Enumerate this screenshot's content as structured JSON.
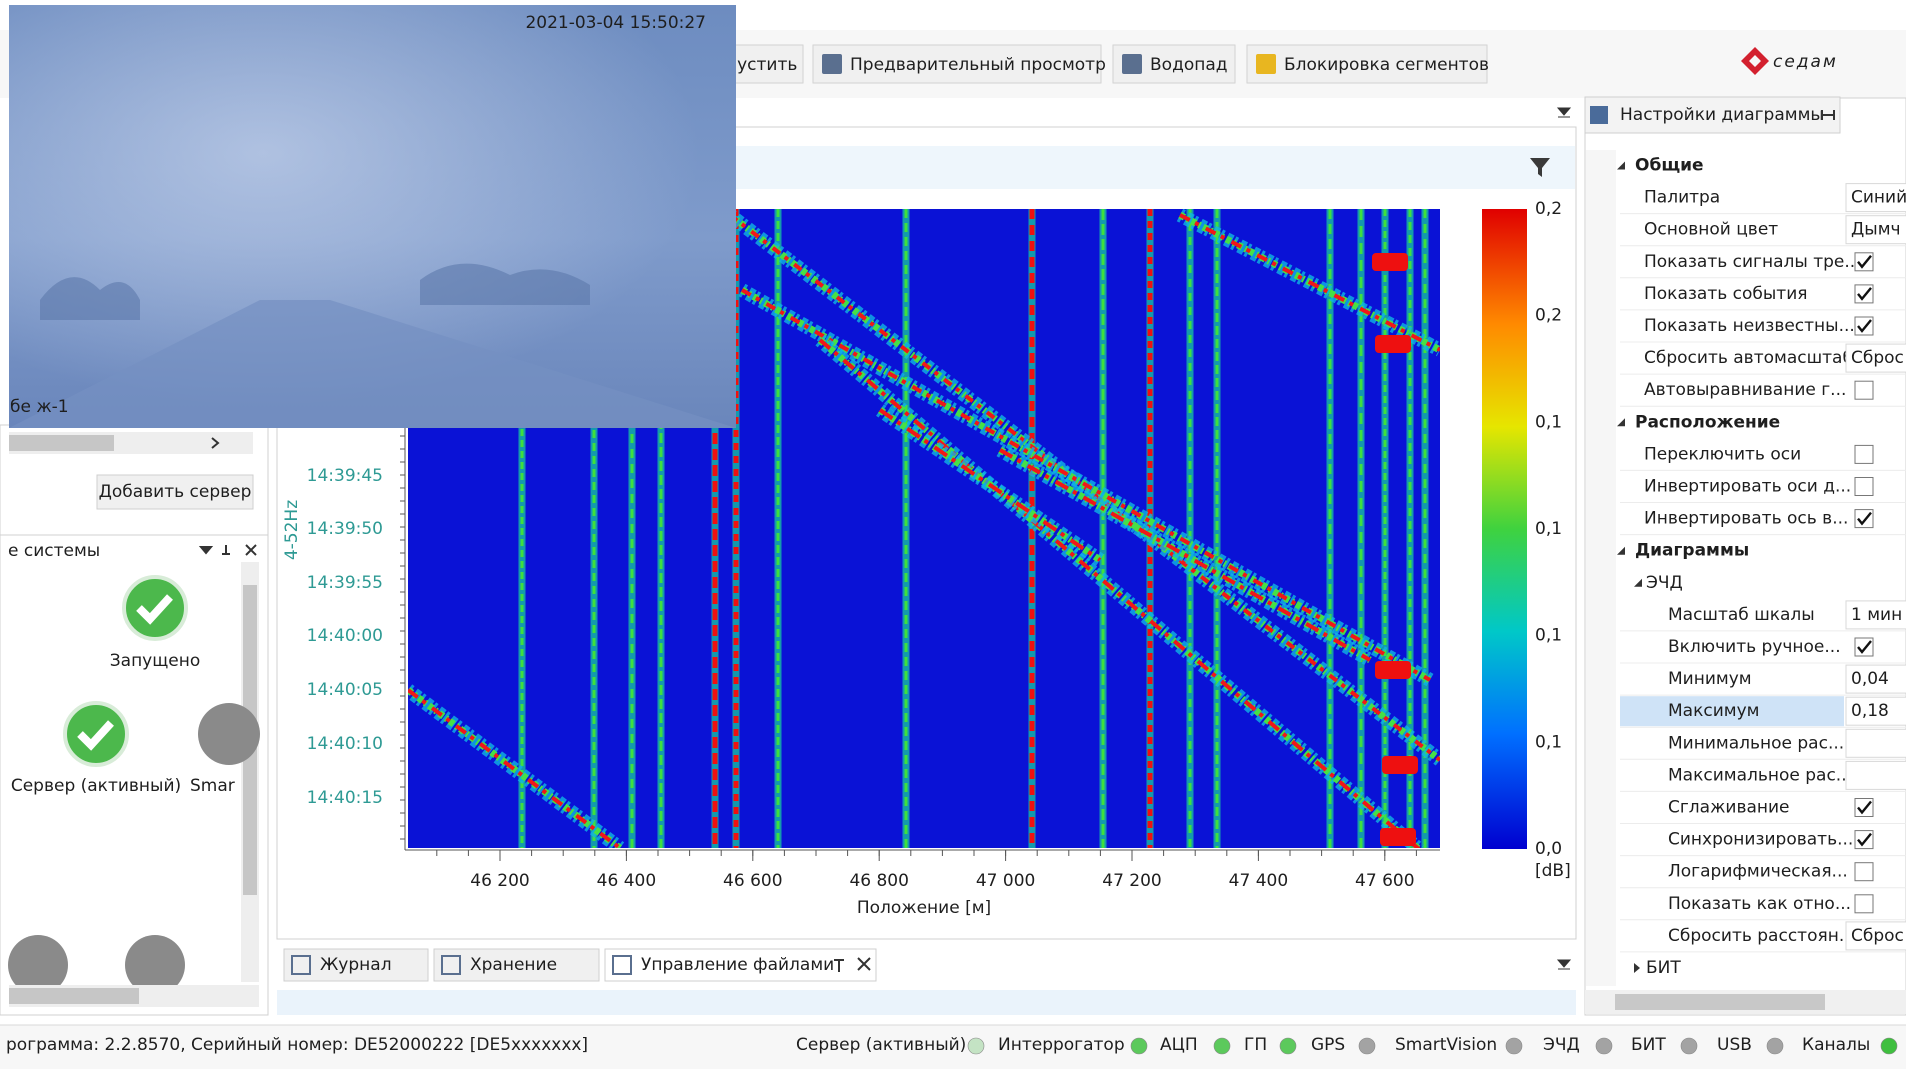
{
  "toolbar": {
    "buttons": [
      "пустить",
      "Предварительный просмотр",
      "Водопад",
      "Блокировка сегментов"
    ],
    "logo": "седам"
  },
  "camera": {
    "timestamp": "2021-03-04 15:50:27",
    "label": "бе ж-1"
  },
  "left_panel": {
    "add_server": "Добавить сервер",
    "title": "е системы",
    "items": [
      "Запущено",
      "Сервер (активный)",
      "Smar"
    ]
  },
  "waterfall": {
    "y_axis_label": "4-52Hz",
    "times": [
      "14:39:45",
      "14:39:50",
      "14:39:55",
      "14:40:00",
      "14:40:05",
      "14:40:10",
      "14:40:15"
    ],
    "positions": [
      "46 200",
      "46 400",
      "46 600",
      "46 800",
      "47 000",
      "47 200",
      "47 400",
      "47 600"
    ],
    "x_axis_title": "Положение [м]",
    "colorbar": [
      "0,2",
      "0,2",
      "0,1",
      "0,1",
      "0,1",
      "0,1",
      "0,0"
    ],
    "colorbar_unit": "[dB]"
  },
  "tabs": [
    "Журнал",
    "Хранение",
    "Управление файлами"
  ],
  "settings": {
    "title": "Настройки диаграммы",
    "groups": [
      {
        "title": "Общие",
        "rows": [
          {
            "label": "Палитра",
            "value": "Синий"
          },
          {
            "label": "Основной цвет",
            "value": "Дымч"
          },
          {
            "label": "Показать сигналы тре...",
            "checked": true
          },
          {
            "label": "Показать события",
            "checked": true
          },
          {
            "label": "Показать неизвестны...",
            "checked": true
          },
          {
            "label": "Сбросить автомасштаб",
            "value": "Сброс"
          },
          {
            "label": "Автовыравнивание г...",
            "checked": false
          }
        ]
      },
      {
        "title": "Расположение",
        "rows": [
          {
            "label": "Переключить оси",
            "checked": false
          },
          {
            "label": "Инвертировать оси д...",
            "checked": false
          },
          {
            "label": "Инвертировать ось в...",
            "checked": true
          }
        ]
      },
      {
        "title": "Диаграммы",
        "rows": [],
        "subgroups": [
          {
            "title": "ЭЧД",
            "rows": [
              {
                "label": "Масштаб шкалы",
                "value": "1 мин"
              },
              {
                "label": "Включить ручное...",
                "checked": true
              },
              {
                "label": "Минимум",
                "value": "0,04"
              },
              {
                "label": "Максимум",
                "value": "0,18",
                "selected": true
              },
              {
                "label": "Минимальное рас..."
              },
              {
                "label": "Максимальное рас..."
              },
              {
                "label": "Сглаживание",
                "checked": true
              },
              {
                "label": "Синхронизировать...",
                "checked": true
              },
              {
                "label": "Логарифмическая...",
                "checked": false
              },
              {
                "label": "Показать как отно...",
                "checked": false
              },
              {
                "label": "Сбросить расстоян...",
                "value": "Сброс"
              }
            ]
          },
          {
            "title": "БИТ",
            "rows": [],
            "collapsed": true
          }
        ]
      }
    ]
  },
  "status": {
    "text": "рограмма: 2.2.8570, Серийный номер: DE52000222 [DE5xxxxxxx]",
    "indicators": [
      {
        "name": "Сервер (активный)",
        "color": "#c4e3c4"
      },
      {
        "name": "Интеррогатор",
        "color": "#5cc95c"
      },
      {
        "name": "АЦП",
        "color": "#5cc95c"
      },
      {
        "name": "ГП",
        "color": "#5cc95c"
      },
      {
        "name": "GPS",
        "color": "#a3a3a3"
      },
      {
        "name": "SmartVision",
        "color": "#a3a3a3"
      },
      {
        "name": "ЭЧД",
        "color": "#a3a3a3"
      },
      {
        "name": "БИТ",
        "color": "#a3a3a3"
      },
      {
        "name": "USB",
        "color": "#a3a3a3"
      },
      {
        "name": "Каналы",
        "color": "#3fbf3f"
      }
    ]
  }
}
